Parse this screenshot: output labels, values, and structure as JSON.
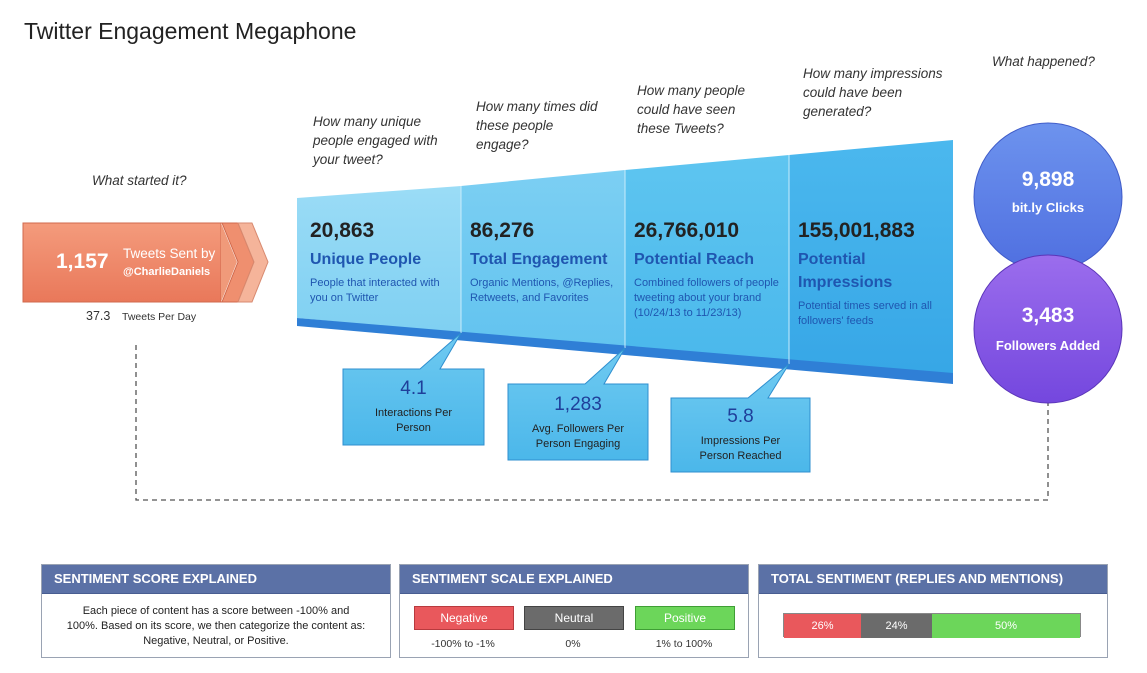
{
  "title": "Twitter Engagement Megaphone",
  "questions": {
    "started": "What started it?",
    "unique": "How many unique people engaged with your tweet?",
    "times": "How many times did these people engage?",
    "seen": "How many people could have seen these Tweets?",
    "impressions": "How many impressions could have been generated?",
    "happened": "What happened?"
  },
  "tweets": {
    "count": "1,157",
    "label1": "Tweets Sent by",
    "label2": "@CharlieDaniels",
    "per_day": "37.3",
    "per_day_label": "Tweets Per Day"
  },
  "funnel": [
    {
      "value": "20,863",
      "label": "Unique People",
      "desc": "People that interacted with you on Twitter"
    },
    {
      "value": "86,276",
      "label": "Total Engagement",
      "desc": "Organic Mentions, @Replies, Retweets, and Favorites"
    },
    {
      "value": "26,766,010",
      "label": "Potential Reach",
      "desc": "Combined followers of people tweeting about your brand (10/24/13 to 11/23/13)"
    },
    {
      "value": "155,001,883",
      "label": "Potential Impressions",
      "desc": "Potential times served in all followers' feeds"
    }
  ],
  "callouts": [
    {
      "value": "4.1",
      "text": "Interactions Per Person"
    },
    {
      "value": "1,283",
      "text": "Avg. Followers Per Person Engaging"
    },
    {
      "value": "5.8",
      "text": "Impressions Per Person Reached"
    }
  ],
  "circles": [
    {
      "value": "9,898",
      "label": "bit.ly Clicks"
    },
    {
      "value": "3,483",
      "label": "Followers Added"
    }
  ],
  "panels": {
    "score": {
      "title": "SENTIMENT SCORE EXPLAINED",
      "text": "Each piece of content has a score between -100% and 100%. Based on its score, we then categorize the content as: Negative, Neutral, or Positive."
    },
    "scale": {
      "title": "SENTIMENT SCALE EXPLAINED",
      "items": [
        {
          "label": "Negative",
          "range": "-100% to -1%",
          "color": "#e9585c"
        },
        {
          "label": "Neutral",
          "range": "0%",
          "color": "#6b6b6b"
        },
        {
          "label": "Positive",
          "range": "1% to 100%",
          "color": "#6cd65a"
        }
      ]
    },
    "total": {
      "title": "TOTAL SENTIMENT (REPLIES AND MENTIONS)",
      "segments": [
        {
          "label": "26%",
          "value": 26,
          "color": "#e9585c"
        },
        {
          "label": "24%",
          "value": 24,
          "color": "#6b6b6b"
        },
        {
          "label": "50%",
          "value": 50,
          "color": "#6cd65a"
        }
      ]
    }
  },
  "colors": {
    "tweet_box": "#ee8a68",
    "funnel_light": "#8fd8f4",
    "funnel_dark": "#45b3ea",
    "circle_top": "#5d80e8",
    "circle_bottom": "#8a5ae6"
  }
}
